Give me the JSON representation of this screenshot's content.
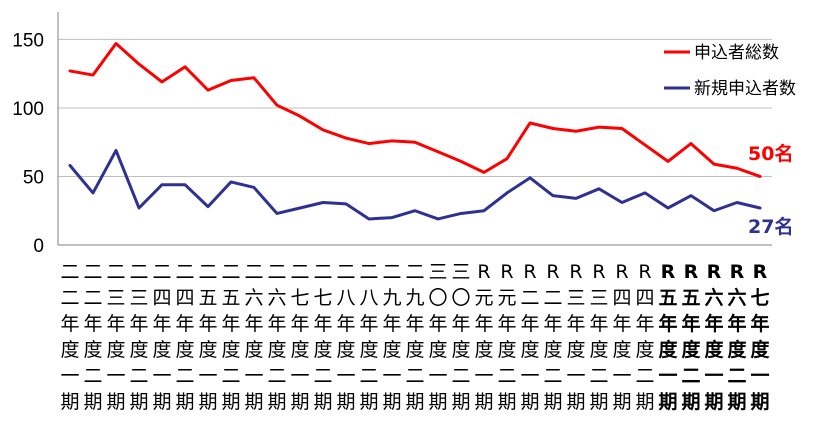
{
  "chart_data": {
    "type": "line",
    "title": "",
    "xlabel": "",
    "ylabel": "",
    "ylim": [
      0,
      170
    ],
    "yticks": [
      "0",
      "50",
      "100",
      "150"
    ],
    "grid": true,
    "legend_position": "top-right",
    "categories": [
      "二二年度一期",
      "二二年度二期",
      "二三年度一期",
      "二三年度二期",
      "二四年度一期",
      "二四年度二期",
      "二五年度一期",
      "二五年度二期",
      "二六年度一期",
      "二六年度二期",
      "二七年度一期",
      "二七年度二期",
      "二八年度一期",
      "二八年度二期",
      "二九年度一期",
      "二九年度二期",
      "三〇年度一期",
      "三〇年度二期",
      "R元年度一期",
      "R元年度二期",
      "R二年度一期",
      "R二年度二期",
      "R三年度一期",
      "R三年度二期",
      "R四年度一期",
      "R四年度二期",
      "R五年度一期",
      "R五年度二期",
      "R六年度一期",
      "R六年度二期",
      "R七年度一期"
    ],
    "category_labels": [
      [
        "二",
        "二",
        "年",
        "度",
        "一",
        "期"
      ],
      [
        "二",
        "二",
        "年",
        "度",
        "二",
        "期"
      ],
      [
        "二",
        "三",
        "年",
        "度",
        "一",
        "期"
      ],
      [
        "二",
        "三",
        "年",
        "度",
        "二",
        "期"
      ],
      [
        "二",
        "四",
        "年",
        "度",
        "一",
        "期"
      ],
      [
        "二",
        "四",
        "年",
        "度",
        "二",
        "期"
      ],
      [
        "二",
        "五",
        "年",
        "度",
        "一",
        "期"
      ],
      [
        "二",
        "五",
        "年",
        "度",
        "二",
        "期"
      ],
      [
        "二",
        "六",
        "年",
        "度",
        "一",
        "期"
      ],
      [
        "二",
        "六",
        "年",
        "度",
        "二",
        "期"
      ],
      [
        "二",
        "七",
        "年",
        "度",
        "一",
        "期"
      ],
      [
        "二",
        "七",
        "年",
        "度",
        "二",
        "期"
      ],
      [
        "二",
        "八",
        "年",
        "度",
        "一",
        "期"
      ],
      [
        "二",
        "八",
        "年",
        "度",
        "二",
        "期"
      ],
      [
        "二",
        "九",
        "年",
        "度",
        "一",
        "期"
      ],
      [
        "二",
        "九",
        "年",
        "度",
        "二",
        "期"
      ],
      [
        "三",
        "〇",
        "年",
        "度",
        "一",
        "期"
      ],
      [
        "三",
        "〇",
        "年",
        "度",
        "二",
        "期"
      ],
      [
        "R",
        "元",
        "年",
        "度",
        "一",
        "期"
      ],
      [
        "R",
        "元",
        "年",
        "度",
        "二",
        "期"
      ],
      [
        "R",
        "二",
        "年",
        "度",
        "一",
        "期"
      ],
      [
        "R",
        "二",
        "年",
        "度",
        "二",
        "期"
      ],
      [
        "R",
        "三",
        "年",
        "度",
        "一",
        "期"
      ],
      [
        "R",
        "三",
        "年",
        "度",
        "二",
        "期"
      ],
      [
        "R",
        "四",
        "年",
        "度",
        "一",
        "期"
      ],
      [
        "R",
        "四",
        "年",
        "度",
        "二",
        "期"
      ],
      [
        "R",
        "五",
        "年",
        "度",
        "一",
        "期"
      ],
      [
        "R",
        "五",
        "年",
        "度",
        "二",
        "期"
      ],
      [
        "R",
        "六",
        "年",
        "度",
        "一",
        "期"
      ],
      [
        "R",
        "六",
        "年",
        "度",
        "二",
        "期"
      ],
      [
        "R",
        "七",
        "年",
        "度",
        "一",
        "期"
      ]
    ],
    "series": [
      {
        "name": "申込者総数",
        "color": "#ff0000",
        "values": [
          127,
          124,
          147,
          132,
          119,
          130,
          113,
          120,
          122,
          102,
          94,
          84,
          78,
          74,
          76,
          75,
          68,
          61,
          53,
          63,
          89,
          85,
          83,
          86,
          85,
          73,
          61,
          74,
          59,
          56,
          50
        ],
        "end_label": "50名"
      },
      {
        "name": "新規申込者数",
        "color": "#2e3192",
        "values": [
          58,
          38,
          69,
          27,
          44,
          44,
          28,
          46,
          42,
          23,
          27,
          31,
          30,
          19,
          20,
          25,
          19,
          23,
          25,
          38,
          49,
          36,
          34,
          41,
          31,
          38,
          27,
          36,
          25,
          31,
          27
        ],
        "end_label": "27名"
      }
    ]
  }
}
